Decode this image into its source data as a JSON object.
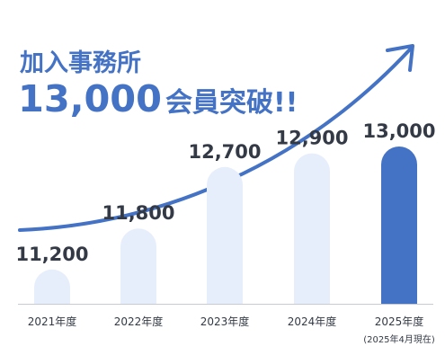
{
  "headline": {
    "line1": "加入事務所",
    "big_number": "13,000",
    "suffix": "会員突破!!"
  },
  "note": "(2025年4月現在)",
  "colors": {
    "accent": "#4472c4",
    "bar_light": "#e7eefb",
    "bar_highlight": "#4472c4",
    "text": "#333a45",
    "baseline": "#c8ccd2"
  },
  "chart_data": {
    "type": "bar",
    "categories": [
      "2021年度",
      "2022年度",
      "2023年度",
      "2024年度",
      "2025年度"
    ],
    "values": [
      11200,
      11800,
      12700,
      12900,
      13000
    ],
    "value_labels": [
      "11,200",
      "11,800",
      "12,700",
      "12,900",
      "13,000"
    ],
    "highlight_index": 4,
    "grid": false,
    "legend": "none",
    "trend_arrow": true
  }
}
